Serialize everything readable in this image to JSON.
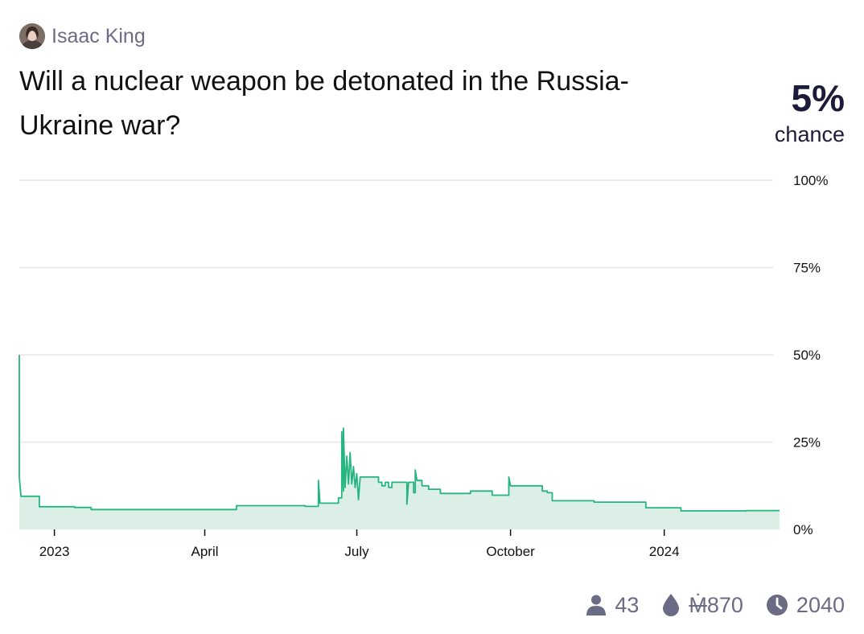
{
  "author": {
    "name": "Isaac King"
  },
  "question": {
    "title": "Will a nuclear weapon be detonated in the Russia-Ukraine war?"
  },
  "probability": {
    "value": "5%",
    "label": "chance"
  },
  "colors": {
    "line": "#25b482",
    "fill": "#dcefe6",
    "grid": "#e5e5ea",
    "muted": "#6b6b85",
    "prob": "#1c1b3a"
  },
  "stats": {
    "traders": "43",
    "volume_symbol": "Ṁ",
    "volume_value": "870",
    "close_year": "2040"
  },
  "icons": {
    "traders": "person-icon",
    "volume": "droplet-icon",
    "close": "clock-icon"
  },
  "chart_data": {
    "type": "area",
    "x_ticks": [
      "2023",
      "April",
      "July",
      "October",
      "2024"
    ],
    "y_ticks": [
      "0%",
      "25%",
      "50%",
      "75%",
      "100%"
    ],
    "xlim": [
      "2022-12-11",
      "2024-03-10"
    ],
    "ylim": [
      0,
      100
    ],
    "grid": true,
    "points": [
      [
        "2022-12-11",
        50
      ],
      [
        "2022-12-11",
        15
      ],
      [
        "2022-12-12",
        9.5
      ],
      [
        "2022-12-23",
        9.5
      ],
      [
        "2022-12-23",
        6.5
      ],
      [
        "2023-01-13",
        6.5
      ],
      [
        "2023-01-13",
        6.3
      ],
      [
        "2023-01-23",
        6.3
      ],
      [
        "2023-01-23",
        5.7
      ],
      [
        "2023-04-20",
        5.7
      ],
      [
        "2023-04-20",
        6.8
      ],
      [
        "2023-05-31",
        6.8
      ],
      [
        "2023-05-31",
        6.6
      ],
      [
        "2023-06-08",
        6.6
      ],
      [
        "2023-06-08",
        14
      ],
      [
        "2023-06-09",
        7.5
      ],
      [
        "2023-06-20",
        7.5
      ],
      [
        "2023-06-20",
        9
      ],
      [
        "2023-06-22",
        9
      ],
      [
        "2023-06-22",
        28
      ],
      [
        "2023-06-23",
        11
      ],
      [
        "2023-06-23",
        29
      ],
      [
        "2023-06-24",
        12
      ],
      [
        "2023-06-25",
        21
      ],
      [
        "2023-06-26",
        13
      ],
      [
        "2023-06-27",
        22
      ],
      [
        "2023-06-28",
        13
      ],
      [
        "2023-06-29",
        18
      ],
      [
        "2023-06-30",
        12
      ],
      [
        "2023-07-01",
        16
      ],
      [
        "2023-07-02",
        8.5
      ],
      [
        "2023-07-03",
        15
      ],
      [
        "2023-07-14",
        15
      ],
      [
        "2023-07-14",
        13.5
      ],
      [
        "2023-07-16",
        13.5
      ],
      [
        "2023-07-16",
        12.5
      ],
      [
        "2023-07-18",
        12.5
      ],
      [
        "2023-07-18",
        13.5
      ],
      [
        "2023-07-20",
        13.5
      ],
      [
        "2023-07-20",
        12
      ],
      [
        "2023-07-22",
        12
      ],
      [
        "2023-07-22",
        13.5
      ],
      [
        "2023-07-31",
        13.5
      ],
      [
        "2023-07-31",
        7.2
      ],
      [
        "2023-08-01",
        13.5
      ],
      [
        "2023-08-04",
        13.5
      ],
      [
        "2023-08-04",
        10.5
      ],
      [
        "2023-08-05",
        10.5
      ],
      [
        "2023-08-05",
        17
      ],
      [
        "2023-08-06",
        14
      ],
      [
        "2023-08-09",
        14
      ],
      [
        "2023-08-09",
        12.5
      ],
      [
        "2023-08-13",
        12.5
      ],
      [
        "2023-08-13",
        11.5
      ],
      [
        "2023-08-20",
        11.5
      ],
      [
        "2023-08-20",
        10.3
      ],
      [
        "2023-09-07",
        10.3
      ],
      [
        "2023-09-07",
        11
      ],
      [
        "2023-09-20",
        11
      ],
      [
        "2023-09-20",
        9.8
      ],
      [
        "2023-09-30",
        9.8
      ],
      [
        "2023-09-30",
        15
      ],
      [
        "2023-10-01",
        12.5
      ],
      [
        "2023-10-20",
        12.5
      ],
      [
        "2023-10-20",
        11
      ],
      [
        "2023-10-23",
        11
      ],
      [
        "2023-10-23",
        10.5
      ],
      [
        "2023-10-26",
        10.5
      ],
      [
        "2023-10-26",
        8.2
      ],
      [
        "2023-11-20",
        8.2
      ],
      [
        "2023-11-20",
        7.8
      ],
      [
        "2023-12-21",
        7.8
      ],
      [
        "2023-12-21",
        6.2
      ],
      [
        "2024-01-11",
        6.2
      ],
      [
        "2024-01-11",
        5.3
      ],
      [
        "2024-02-19",
        5.3
      ],
      [
        "2024-02-19",
        5.4
      ],
      [
        "2024-03-10",
        5.4
      ]
    ]
  }
}
